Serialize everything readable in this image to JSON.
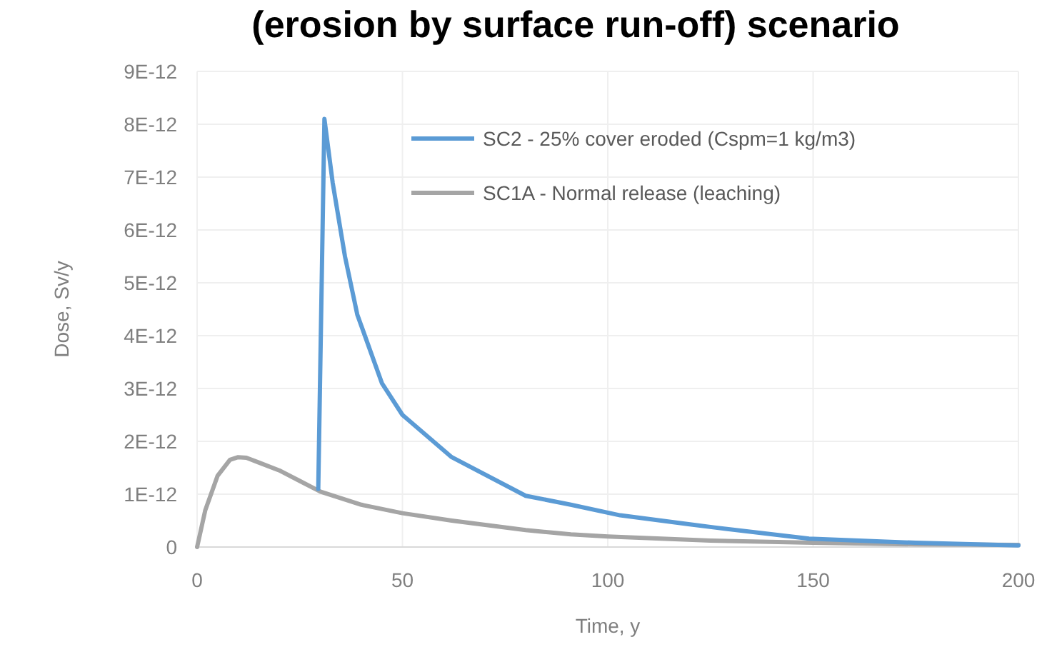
{
  "chart_data": {
    "type": "line",
    "title": "(erosion by surface run-off) scenario",
    "xlabel": "Time, y",
    "ylabel": "Dose, Sv/y",
    "xlim": [
      0,
      200
    ],
    "xticks": [
      0,
      50,
      100,
      150,
      200
    ],
    "ylim": [
      0,
      9e-12
    ],
    "yticks": [
      {
        "value": 0,
        "label": "0"
      },
      {
        "value": 1e-12,
        "label": "1E-12"
      },
      {
        "value": 2e-12,
        "label": "2E-12"
      },
      {
        "value": 3e-12,
        "label": "3E-12"
      },
      {
        "value": 4e-12,
        "label": "4E-12"
      },
      {
        "value": 5e-12,
        "label": "5E-12"
      },
      {
        "value": 6e-12,
        "label": "6E-12"
      },
      {
        "value": 7e-12,
        "label": "7E-12"
      },
      {
        "value": 8e-12,
        "label": "8E-12"
      },
      {
        "value": 9e-12,
        "label": "9E-12"
      }
    ],
    "grid": true,
    "legend": "top right",
    "marker": "none",
    "line_style": "solid",
    "series": [
      {
        "name": "SC2 - 25% cover eroded (Cspm=1 kg/m3)",
        "color": "#5b9bd5",
        "x": [
          29.5,
          31,
          33,
          36,
          39,
          45,
          50,
          62,
          80,
          91,
          103,
          120,
          126,
          149,
          175,
          200
        ],
        "values": [
          1.1e-12,
          8.1e-12,
          6.9e-12,
          5.5e-12,
          4.4e-12,
          3.1e-12,
          2.5e-12,
          1.7e-12,
          9.7e-13,
          8e-13,
          6e-13,
          4.3e-13,
          3.7e-13,
          1.6e-13,
          8e-14,
          3e-14
        ]
      },
      {
        "name": "SC1A - Normal release (leaching)",
        "color": "#a5a5a5",
        "x": [
          0,
          2,
          5,
          8,
          10,
          12,
          15,
          20,
          25,
          30,
          40,
          50,
          62,
          80,
          91,
          100,
          125,
          150,
          175,
          200
        ],
        "values": [
          0,
          7e-13,
          1.35e-12,
          1.65e-12,
          1.7e-12,
          1.69e-12,
          1.6e-12,
          1.45e-12,
          1.25e-12,
          1.05e-12,
          8e-13,
          6.4e-13,
          5e-13,
          3.2e-13,
          2.4e-13,
          2e-13,
          1.2e-13,
          8e-14,
          5e-14,
          4e-14
        ]
      }
    ]
  }
}
